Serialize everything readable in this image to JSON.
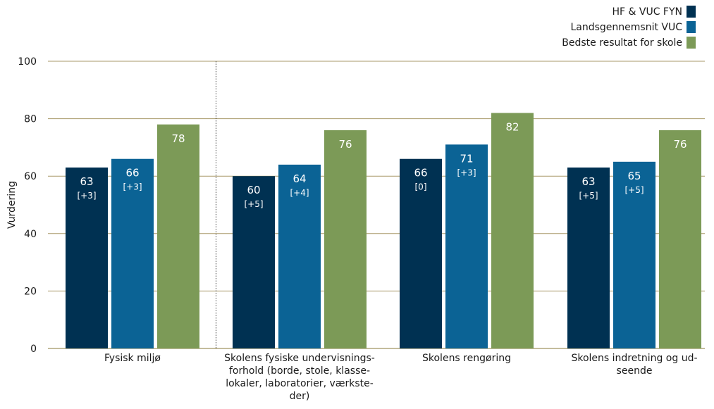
{
  "chart_data": {
    "type": "bar",
    "ylabel": "Vurdering",
    "ylim": [
      0,
      100
    ],
    "yticks": [
      0,
      20,
      40,
      60,
      80,
      100
    ],
    "grid": true,
    "legend_position": "top-right",
    "categories": [
      "Fysisk miljø",
      "Skolens fysiske undervisnings-forhold (borde, stole, klasse-lokaler, laboratorier, værkste-der)",
      "Skolens rengøring",
      "Skolens indretning og ud-seende"
    ],
    "category_lines": [
      [
        "Fysisk miljø"
      ],
      [
        "Skolens fysiske undervisnings-",
        "forhold (borde, stole, klasse-",
        "lokaler, laboratorier, værkste-",
        "der)"
      ],
      [
        "Skolens rengøring"
      ],
      [
        "Skolens indretning og ud-",
        "seende"
      ]
    ],
    "series": [
      {
        "name": "HF & VUC FYN",
        "color": "#003152",
        "values": [
          63,
          60,
          66,
          63
        ],
        "labels": [
          "63",
          "60",
          "66",
          "63"
        ],
        "sublabels": [
          "[+3]",
          "[+5]",
          "[0]",
          "[+5]"
        ]
      },
      {
        "name": "Landsgennemsnit VUC",
        "color": "#0b6395",
        "values": [
          66,
          64,
          71,
          65
        ],
        "labels": [
          "66",
          "64",
          "71",
          "65"
        ],
        "sublabels": [
          "[+3]",
          "[+4]",
          "[+3]",
          "[+5]"
        ]
      },
      {
        "name": "Bedste resultat for skole",
        "color": "#7c9a57",
        "values": [
          78,
          76,
          82,
          76
        ],
        "labels": [
          "78",
          "76",
          "82",
          "76"
        ],
        "sublabels": [
          "",
          "",
          "",
          ""
        ]
      }
    ],
    "separator_after_category": 0
  }
}
